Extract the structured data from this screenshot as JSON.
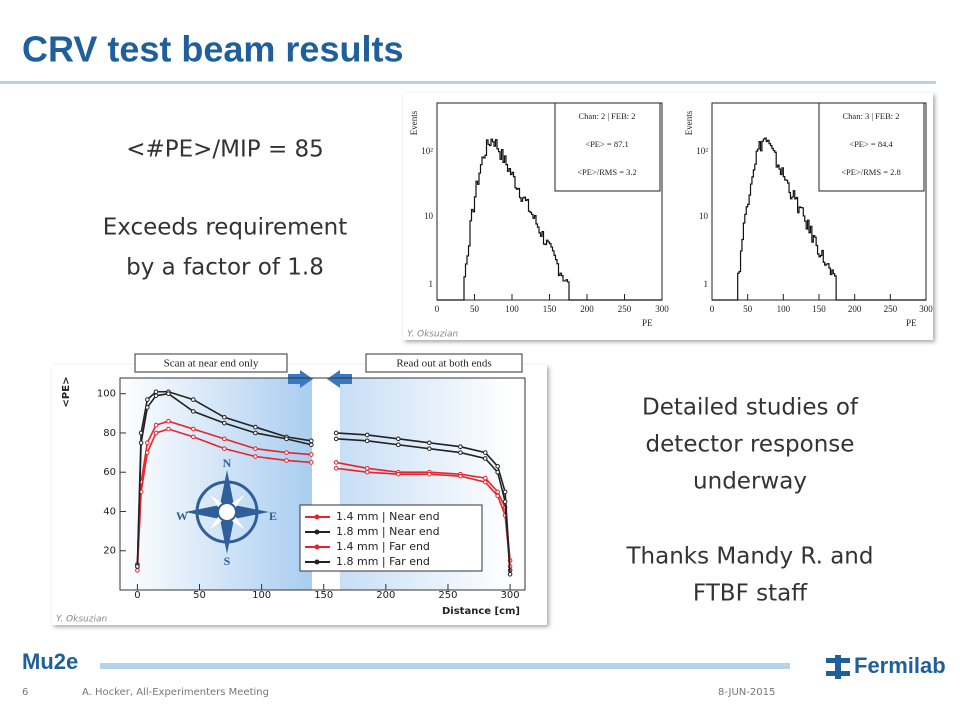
{
  "title": "CRV test beam results",
  "left_text": [
    "<#PE>/MIP = 85",
    "Exceeds requirement",
    "by a factor of 1.8"
  ],
  "right_text": [
    "Detailed studies of",
    "detector response",
    "underway",
    "Thanks Mandy R. and",
    "FTBF staff"
  ],
  "histograms": [
    {
      "stats": [
        "Chan: 2 | FEB: 2",
        "<PE> = 87.1",
        "<PE>/RMS = 3.2"
      ]
    },
    {
      "stats": [
        "Chan: 3 | FEB: 2",
        "<PE> = 84.4",
        "<PE>/RMS = 2.8"
      ]
    }
  ],
  "hist_ylabel": "Events",
  "hist_xlabel": "PE",
  "hist_xticks": [
    0,
    50,
    100,
    150,
    200,
    250,
    300
  ],
  "hist_yticks": [
    "1",
    "10",
    "10²"
  ],
  "credit": "Y. Oksuzian",
  "plot": {
    "ylabel": "<PE>",
    "xlabel": "Distance [cm]",
    "xlim": [
      -14,
      312
    ],
    "ylim": [
      0,
      108
    ],
    "xticks": [
      0,
      50,
      100,
      150,
      200,
      250,
      300
    ],
    "yticks": [
      20,
      40,
      60,
      80,
      100
    ],
    "annotations": [
      "Scan at near end only",
      "Read out at both ends"
    ],
    "compass": [
      "N",
      "S",
      "W",
      "E"
    ],
    "x": [
      0,
      3,
      8,
      15,
      25,
      45,
      70,
      95,
      120,
      140,
      null,
      160,
      185,
      210,
      235,
      260,
      280,
      290,
      296,
      300
    ],
    "series": [
      {
        "name": "1.4 mm | Near end",
        "color": "#e8232a",
        "values": [
          12,
          55,
          75,
          84,
          86,
          82,
          77,
          72,
          70,
          69,
          null,
          65,
          62,
          60,
          60,
          59,
          57,
          50,
          42,
          15
        ]
      },
      {
        "name": "1.8 mm | Near end",
        "color": "#222222",
        "values": [
          13,
          80,
          97,
          101,
          101,
          97,
          88,
          83,
          78,
          76,
          null,
          80,
          79,
          77,
          75,
          73,
          70,
          63,
          50,
          10
        ]
      },
      {
        "name": "1.4 mm | Far end",
        "color": "#e8232a",
        "values": [
          10,
          50,
          70,
          80,
          82,
          78,
          72,
          68,
          66,
          65,
          null,
          62,
          60,
          59,
          59,
          58,
          55,
          48,
          38,
          12
        ]
      },
      {
        "name": "1.8 mm | Far end",
        "color": "#222222",
        "values": [
          12,
          75,
          93,
          99,
          100,
          91,
          85,
          80,
          77,
          74,
          null,
          77,
          76,
          74,
          72,
          70,
          67,
          60,
          45,
          8
        ]
      }
    ]
  },
  "footer": {
    "logo_left": "Mu2e",
    "logo_right": "Fermilab",
    "page": "6",
    "author": "A. Hocker, All-Experimenters Meeting",
    "date": "8-JUN-2015"
  }
}
